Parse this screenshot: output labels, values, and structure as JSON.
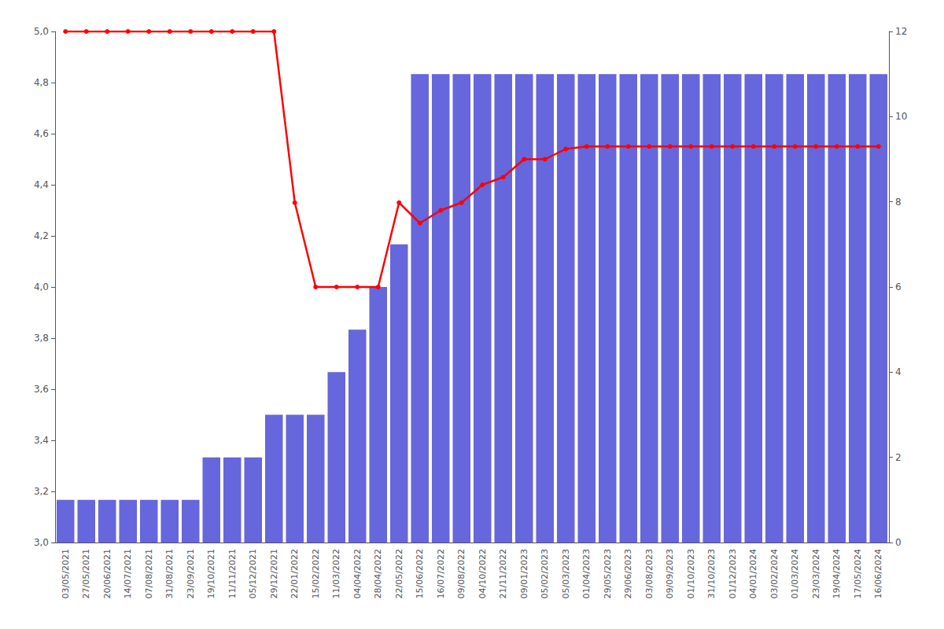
{
  "chart_data": {
    "type": "bar",
    "categories": [
      "03/05/2021",
      "27/05/2021",
      "20/06/2021",
      "14/07/2021",
      "07/08/2021",
      "31/08/2021",
      "23/09/2021",
      "19/10/2021",
      "11/11/2021",
      "05/12/2021",
      "29/12/2021",
      "22/01/2022",
      "15/02/2022",
      "11/03/2022",
      "04/04/2022",
      "28/04/2022",
      "22/05/2022",
      "15/06/2022",
      "16/07/2022",
      "09/08/2022",
      "04/10/2022",
      "21/11/2022",
      "09/01/2023",
      "05/02/2023",
      "05/03/2023",
      "01/04/2023",
      "29/05/2023",
      "29/06/2023",
      "03/08/2023",
      "09/09/2023",
      "01/10/2023",
      "31/10/2023",
      "01/12/2023",
      "04/01/2024",
      "03/02/2024",
      "01/03/2024",
      "23/03/2024",
      "19/04/2024",
      "17/05/2024",
      "16/06/2024"
    ],
    "series": [
      {
        "type": "bar",
        "axis": "y2",
        "color": "#6666dd",
        "values": [
          1,
          1,
          1,
          1,
          1,
          1,
          1,
          2,
          2,
          2,
          3,
          3,
          3,
          4,
          5,
          6,
          7,
          11,
          11,
          11,
          11,
          11,
          11,
          11,
          11,
          11,
          11,
          11,
          11,
          11,
          11,
          11,
          11,
          11,
          11,
          11,
          11,
          11,
          11,
          11
        ]
      },
      {
        "type": "line",
        "color": "#ff0000",
        "marker": "circle",
        "values": [
          5.0,
          5.0,
          5.0,
          5.0,
          5.0,
          5.0,
          5.0,
          5.0,
          5.0,
          5.0,
          5.0,
          4.33,
          4.0,
          4.0,
          4.0,
          4.0,
          4.33,
          4.25,
          4.3,
          4.33,
          4.4,
          4.43,
          4.5,
          4.5,
          4.54,
          4.55,
          4.55,
          4.55,
          4.55,
          4.55,
          4.55,
          4.55,
          4.55,
          4.55,
          4.55,
          4.55,
          4.55,
          4.55,
          4.55,
          4.55
        ]
      }
    ],
    "ylim": [
      3.0,
      5.0
    ],
    "yticks": [
      {
        "value": 3.0,
        "label": "3,0"
      },
      {
        "value": 3.2,
        "label": "3,2"
      },
      {
        "value": 3.4,
        "label": "3,4"
      },
      {
        "value": 3.6,
        "label": "3,6"
      },
      {
        "value": 3.8,
        "label": "3,8"
      },
      {
        "value": 4.0,
        "label": "4,0"
      },
      {
        "value": 4.2,
        "label": "4,2"
      },
      {
        "value": 4.4,
        "label": "4,4"
      },
      {
        "value": 4.6,
        "label": "4,6"
      },
      {
        "value": 4.8,
        "label": "4,8"
      },
      {
        "value": 5.0,
        "label": "5,0"
      }
    ],
    "y2lim": [
      0,
      12
    ],
    "y2ticks": [
      0,
      2,
      4,
      6,
      8,
      10,
      12
    ],
    "grid": false
  }
}
